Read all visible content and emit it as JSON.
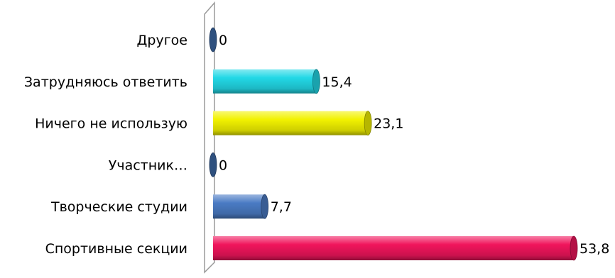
{
  "chart_data": {
    "type": "bar",
    "orientation": "horizontal",
    "style": "3d-cylinder",
    "categories": [
      "Спортивные секции",
      "Творческие студии",
      "Участник…",
      "Ничего не использую",
      "Затрудняюсь ответить",
      "Другое"
    ],
    "values": [
      53.8,
      7.7,
      0,
      23.1,
      15.4,
      0
    ],
    "data_labels": [
      "53,8",
      "7,7",
      "0",
      "23,1",
      "15,4",
      "0"
    ],
    "colors": [
      "#f0155c",
      "#4a7bc4",
      "#3d6aa8",
      "#f2f200",
      "#22d8e6",
      "#3d6aa8"
    ],
    "xlim": [
      0,
      53.8
    ],
    "grid": false,
    "legend": "none",
    "title": "",
    "xlabel": "",
    "ylabel": ""
  }
}
